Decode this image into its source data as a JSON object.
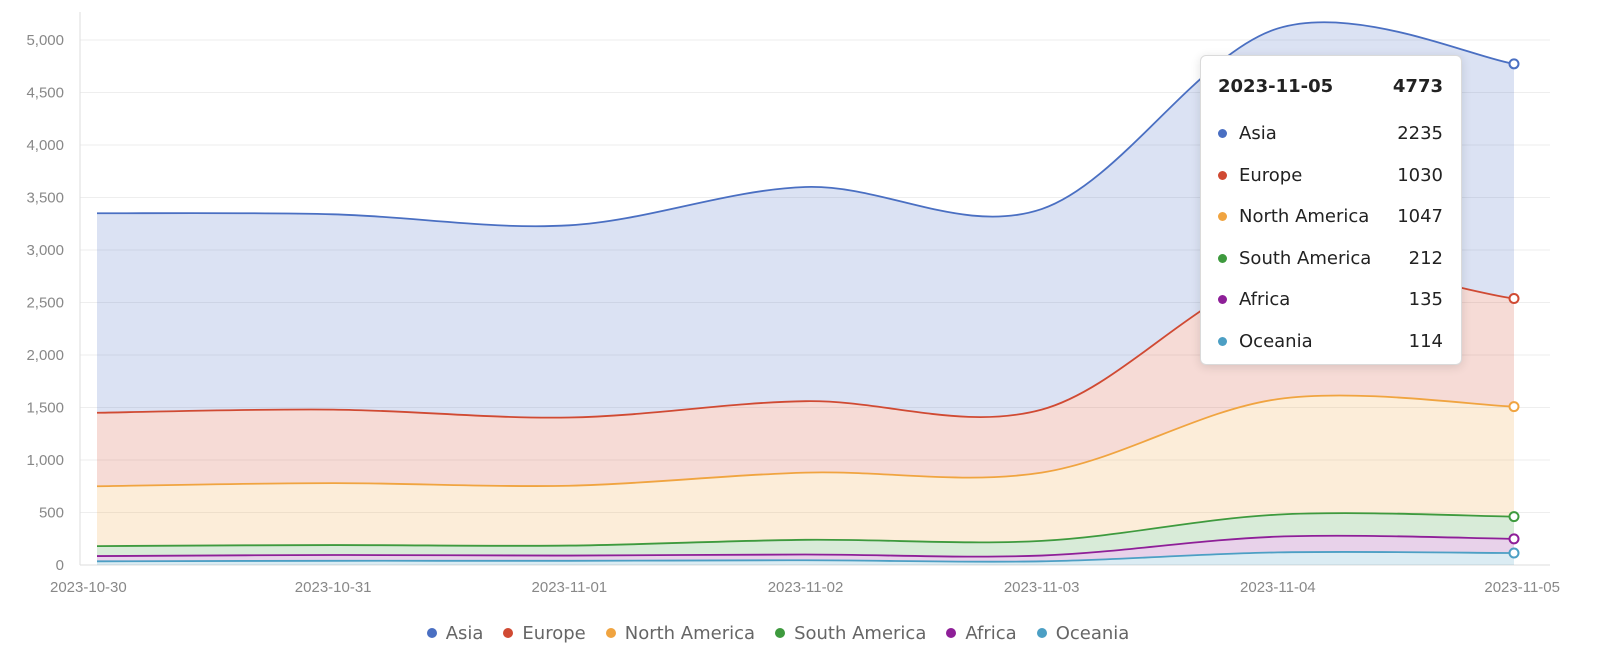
{
  "chart_data": {
    "type": "area",
    "stacked": true,
    "x": [
      "2023-10-30",
      "2023-10-31",
      "2023-11-01",
      "2023-11-02",
      "2023-11-03",
      "2023-11-04",
      "2023-11-05"
    ],
    "series": [
      {
        "name": "Oceania",
        "color": "#4c9fc4",
        "values": [
          35,
          40,
          40,
          45,
          35,
          120,
          114
        ]
      },
      {
        "name": "Africa",
        "color": "#8e1f98",
        "values": [
          50,
          55,
          50,
          55,
          55,
          150,
          135
        ]
      },
      {
        "name": "South America",
        "color": "#3e9a3e",
        "values": [
          95,
          95,
          95,
          140,
          140,
          210,
          212
        ]
      },
      {
        "name": "North America",
        "color": "#f0a440",
        "values": [
          570,
          590,
          570,
          640,
          650,
          1100,
          1047
        ]
      },
      {
        "name": "Europe",
        "color": "#d04a33",
        "values": [
          700,
          700,
          650,
          680,
          600,
          1200,
          1030
        ]
      },
      {
        "name": "Asia",
        "color": "#4a6fc2",
        "values": [
          1900,
          1860,
          1830,
          2040,
          1910,
          2330,
          2235
        ]
      }
    ],
    "ylim": [
      0,
      5000
    ],
    "yticks": [
      "0",
      "500",
      "1,000",
      "1,500",
      "2,000",
      "2,500",
      "3,000",
      "3,500",
      "4,000",
      "4,500",
      "5,000"
    ],
    "xticks": [
      "2023-10-30",
      "2023-10-31",
      "2023-11-01",
      "2023-11-02",
      "2023-11-03",
      "2023-11-04",
      "2023-11-05"
    ],
    "grid": true,
    "legend_position": "bottom-center",
    "legend": [
      "Asia",
      "Europe",
      "North America",
      "South America",
      "Africa",
      "Oceania"
    ]
  },
  "tooltip": {
    "date": "2023-11-05",
    "total": "4773",
    "rows": [
      {
        "name": "Asia",
        "value": "2235",
        "color": "#4a6fc2"
      },
      {
        "name": "Europe",
        "value": "1030",
        "color": "#d04a33"
      },
      {
        "name": "North America",
        "value": "1047",
        "color": "#f0a440"
      },
      {
        "name": "South America",
        "value": "212",
        "color": "#3e9a3e"
      },
      {
        "name": "Africa",
        "value": "135",
        "color": "#8e1f98"
      },
      {
        "name": "Oceania",
        "value": "114",
        "color": "#4c9fc4"
      }
    ]
  },
  "legend": [
    {
      "name": "Asia",
      "color": "#4a6fc2"
    },
    {
      "name": "Europe",
      "color": "#d04a33"
    },
    {
      "name": "North America",
      "color": "#f0a440"
    },
    {
      "name": "South America",
      "color": "#3e9a3e"
    },
    {
      "name": "Africa",
      "color": "#8e1f98"
    },
    {
      "name": "Oceania",
      "color": "#4c9fc4"
    }
  ]
}
